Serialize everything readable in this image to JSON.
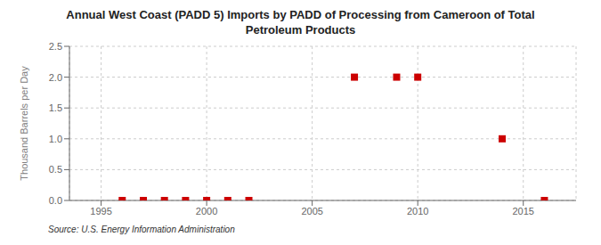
{
  "chart_data": {
    "type": "scatter",
    "title": "Annual West Coast (PADD 5) Imports by PADD of Processing from Cameroon of Total\nPetroleum Products",
    "ylabel": "Thousand Barrels per Day",
    "annotation": "Source: U.S. Energy Information Administration",
    "x": [
      1996,
      1997,
      1998,
      1999,
      2000,
      2001,
      2002,
      2007,
      2009,
      2010,
      2014,
      2016
    ],
    "values": [
      0.0,
      0.0,
      0.0,
      0.0,
      0.0,
      0.0,
      0.0,
      2.0,
      2.0,
      2.0,
      1.0,
      0.0
    ],
    "color": "#cc0000",
    "marker": "square",
    "xlim": [
      1993.5,
      2017.5
    ],
    "xticks": [
      1995,
      2000,
      2005,
      2010,
      2015
    ],
    "ylim": [
      0,
      2.5
    ],
    "yticks": [
      {
        "value": 0,
        "label": "0.0"
      },
      0.5,
      {
        "value": 1,
        "label": "1.0"
      },
      1.5,
      {
        "value": 2,
        "label": "2.0"
      },
      2.5
    ],
    "grid": true
  }
}
